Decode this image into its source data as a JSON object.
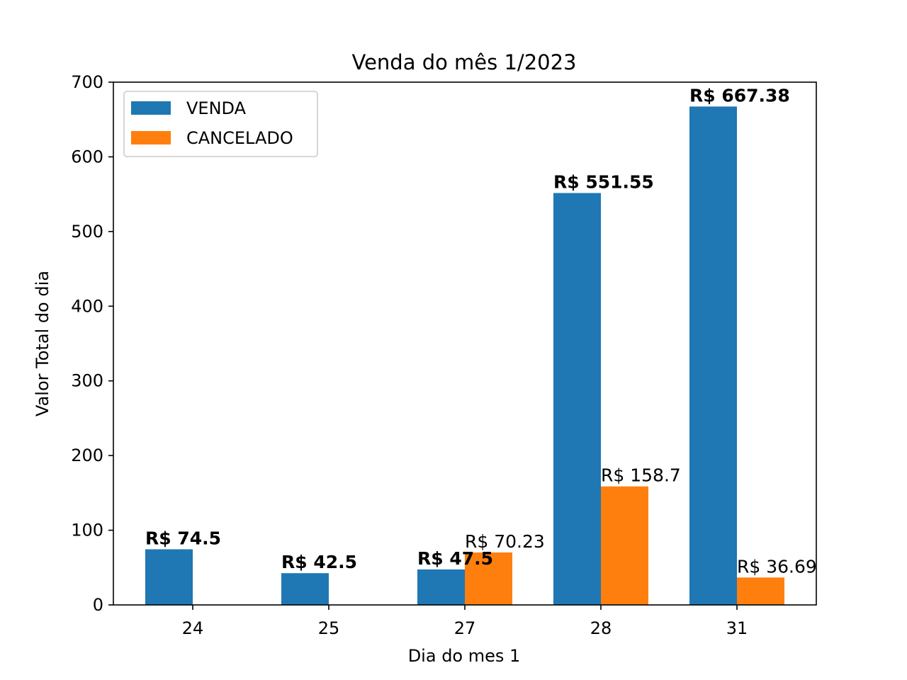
{
  "chart_data": {
    "type": "bar",
    "title": "Venda do mês 1/2023",
    "xlabel": "Dia do mes 1",
    "ylabel": "Valor Total do dia",
    "categories": [
      "24",
      "25",
      "27",
      "28",
      "31"
    ],
    "ylim": [
      0,
      700
    ],
    "yticks": [
      0,
      100,
      200,
      300,
      400,
      500,
      600,
      700
    ],
    "yticklabels": [
      "0",
      "100",
      "200",
      "300",
      "400",
      "500",
      "600",
      "700"
    ],
    "grid": false,
    "legend_position": "top-left",
    "series": [
      {
        "name": "VENDA",
        "color": "#1f77b4",
        "values": [
          74.5,
          42.5,
          47.5,
          551.55,
          667.38
        ],
        "labels": [
          "R$ 74.5",
          "R$ 42.5",
          "R$ 47.5",
          "R$ 551.55",
          "R$ 667.38"
        ],
        "label_weight": "bold"
      },
      {
        "name": "CANCELADO",
        "color": "#ff7f0e",
        "values": [
          null,
          null,
          70.23,
          158.7,
          36.69
        ],
        "labels": [
          null,
          null,
          "R$ 70.23",
          "R$ 158.7",
          "R$ 36.69"
        ],
        "label_weight": "normal"
      }
    ]
  }
}
